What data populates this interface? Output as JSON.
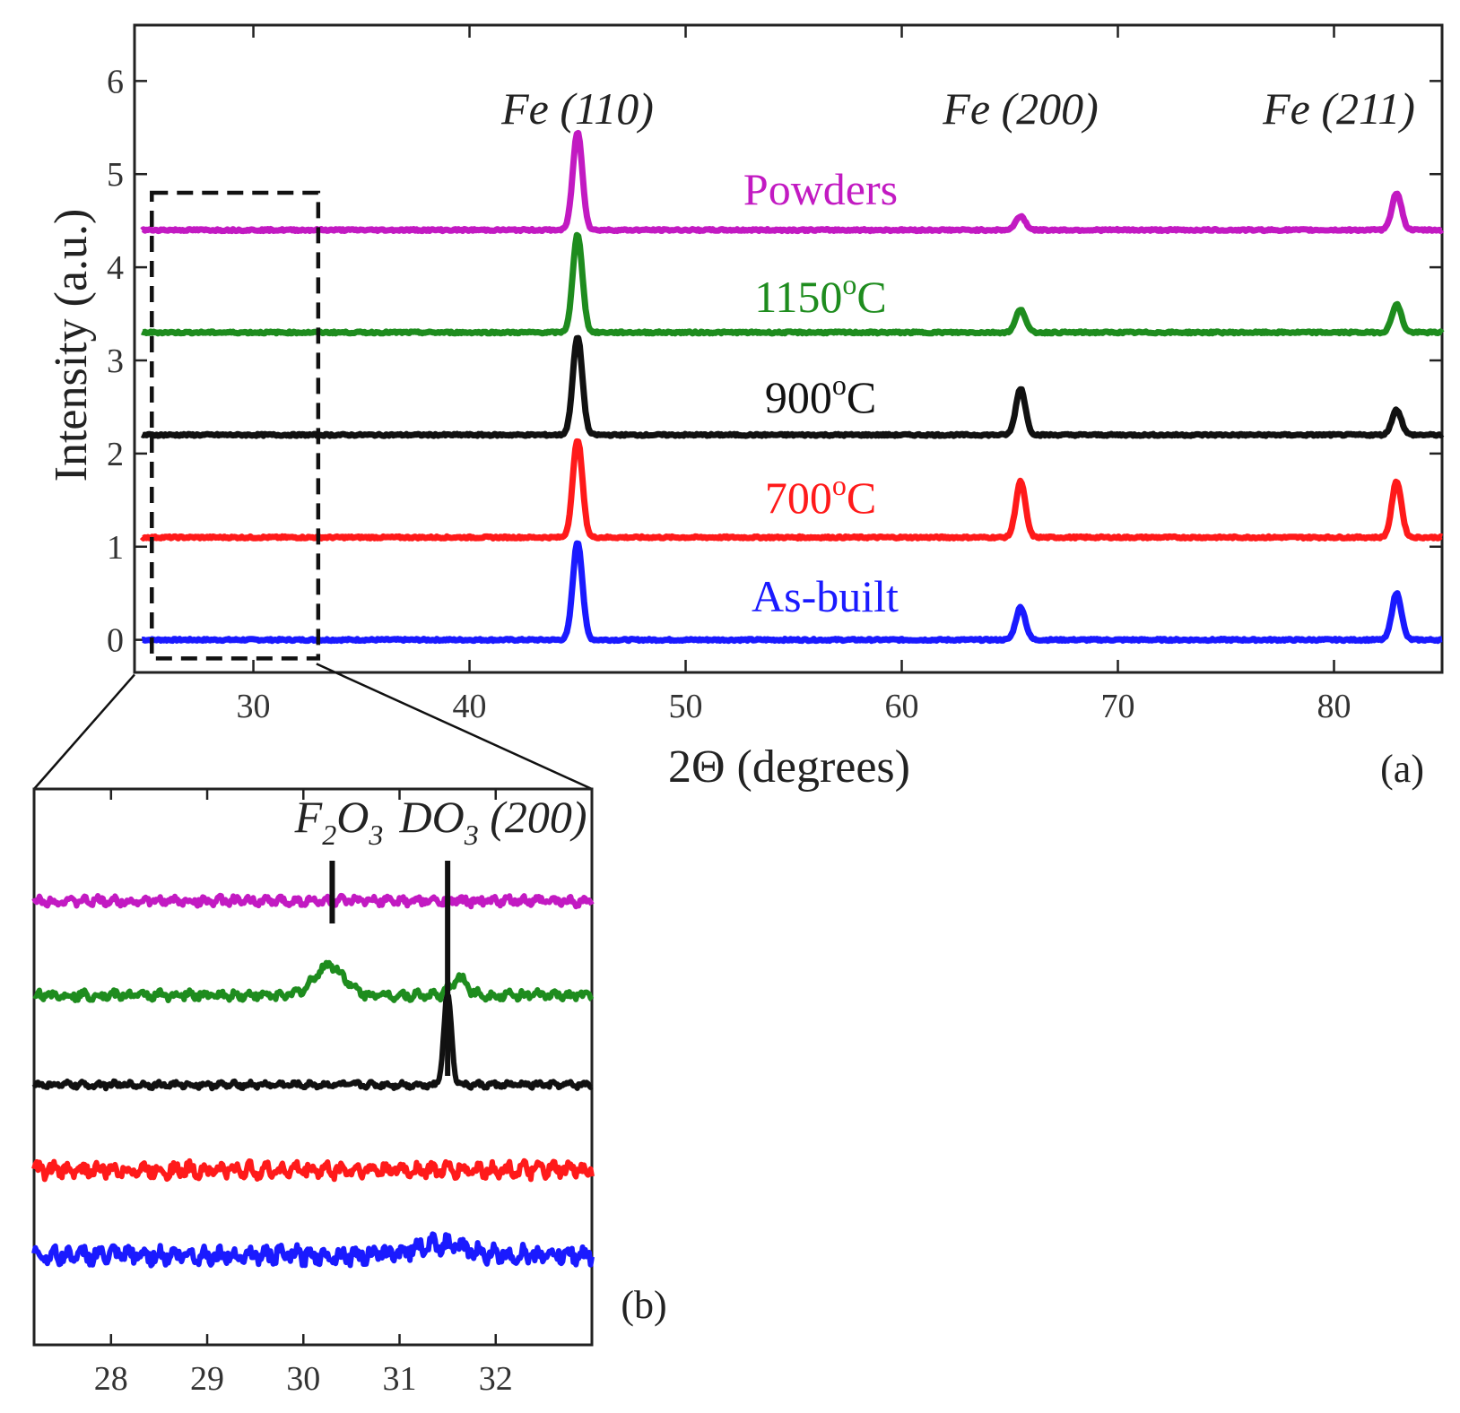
{
  "chart_data": [
    {
      "type": "line",
      "panel": "(a)",
      "xlabel": "2Θ (degrees)",
      "ylabel": "Intensity (a.u.)",
      "xlim": [
        24.5,
        85
      ],
      "ylim": [
        -0.35,
        6.6
      ],
      "x_ticks": [
        30,
        40,
        50,
        60,
        70,
        80
      ],
      "y_ticks": [
        0,
        1,
        2,
        3,
        4,
        5,
        6
      ],
      "peak_labels": [
        {
          "text": "Fe (110)",
          "x": 45
        },
        {
          "text": "Fe (200)",
          "x": 65.5
        },
        {
          "text": "Fe (211)",
          "x": 83
        }
      ],
      "series": [
        {
          "name": "As-built",
          "label_main": "As-built",
          "label_sup": "",
          "label_tail": "",
          "color": "#1a1aff",
          "offset": 0,
          "peaks": [
            {
              "x": 45,
              "h": 1.05
            },
            {
              "x": 65.5,
              "h": 0.35
            },
            {
              "x": 82.9,
              "h": 0.5
            }
          ]
        },
        {
          "name": "700°C",
          "label_main": "700",
          "label_sup": "o",
          "label_tail": "C",
          "color": "#ff1a1a",
          "offset": 1.1,
          "peaks": [
            {
              "x": 45,
              "h": 1.05
            },
            {
              "x": 65.5,
              "h": 0.6
            },
            {
              "x": 82.9,
              "h": 0.6
            }
          ]
        },
        {
          "name": "900°C",
          "label_main": "900",
          "label_sup": "o",
          "label_tail": "C",
          "color": "#111111",
          "offset": 2.2,
          "peaks": [
            {
              "x": 45,
              "h": 1.05
            },
            {
              "x": 65.5,
              "h": 0.5
            },
            {
              "x": 82.9,
              "h": 0.27
            }
          ]
        },
        {
          "name": "1150°C",
          "label_main": "1150",
          "label_sup": "o",
          "label_tail": "C",
          "color": "#1e8c1e",
          "offset": 3.3,
          "peaks": [
            {
              "x": 45,
              "h": 1.05
            },
            {
              "x": 65.5,
              "h": 0.25
            },
            {
              "x": 82.9,
              "h": 0.3
            }
          ]
        },
        {
          "name": "Powders",
          "label_main": "Powders",
          "label_sup": "",
          "label_tail": "",
          "color": "#c21ac2",
          "offset": 4.4,
          "peaks": [
            {
              "x": 45,
              "h": 1.05
            },
            {
              "x": 65.5,
              "h": 0.15
            },
            {
              "x": 82.9,
              "h": 0.4
            }
          ]
        }
      ],
      "zoom_box_x": [
        25.3,
        33
      ],
      "zoom_box_y": [
        -0.2,
        4.8
      ]
    },
    {
      "type": "line",
      "panel": "(b)",
      "xlim": [
        27.2,
        33
      ],
      "x_ticks": [
        28,
        29,
        30,
        31,
        32
      ],
      "peak_labels": [
        {
          "main": "F",
          "sub1": "2",
          "mid": "O",
          "sub2": "3",
          "tail": "",
          "x": 30.3
        },
        {
          "main": "DO",
          "sub1": "3",
          "mid": "",
          "sub2": "",
          "tail": " (200)",
          "x": 31.5
        }
      ],
      "series": [
        {
          "name": "As-built",
          "color": "#1a1aff",
          "offset": 0,
          "noise": 0.35,
          "peaks": [
            {
              "x": 31.4,
              "h": 0.3,
              "w": 0.25
            }
          ]
        },
        {
          "name": "700°C",
          "color": "#ff1a1a",
          "offset": 1.05,
          "noise": 0.3,
          "peaks": []
        },
        {
          "name": "900°C",
          "color": "#111111",
          "offset": 2.05,
          "noise": 0.12,
          "peaks": [
            {
              "x": 31.5,
              "h": 2.4,
              "w": 0.04
            }
          ]
        },
        {
          "name": "1150°C",
          "color": "#1e8c1e",
          "offset": 3.05,
          "noise": 0.18,
          "peaks": [
            {
              "x": 30.27,
              "h": 0.8,
              "w": 0.15
            },
            {
              "x": 31.62,
              "h": 0.45,
              "w": 0.08
            }
          ]
        },
        {
          "name": "Powders",
          "color": "#c21ac2",
          "offset": 4.1,
          "noise": 0.18,
          "peaks": []
        }
      ]
    }
  ]
}
